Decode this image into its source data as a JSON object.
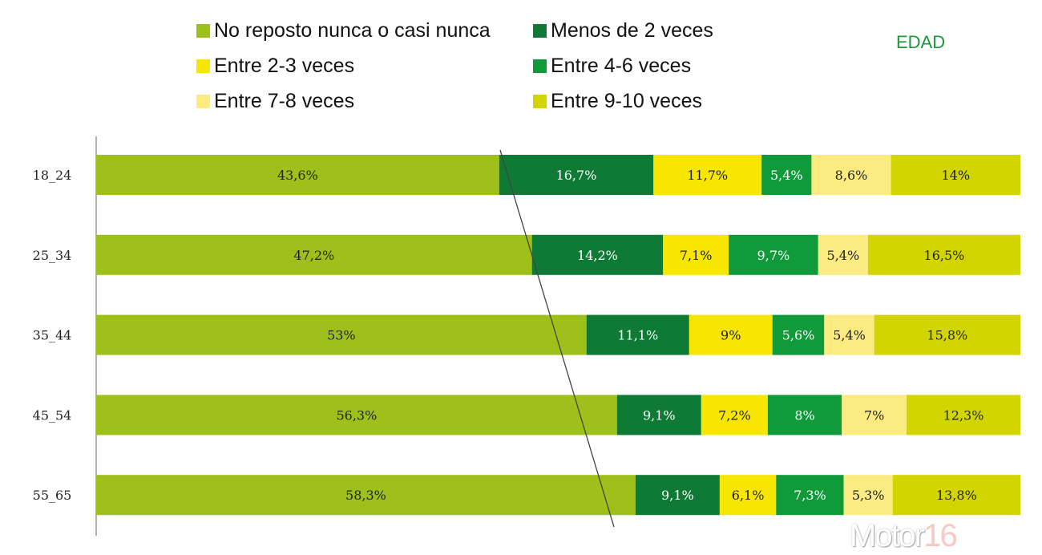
{
  "chart_data": {
    "type": "bar",
    "orientation": "horizontal",
    "stacked": true,
    "title": "EDAD",
    "categories": [
      "18_24",
      "25_34",
      "35_44",
      "45_54",
      "55_65"
    ],
    "series": [
      {
        "name": "No reposto nunca o casi nunca",
        "color": "#9dc11a",
        "text_color": "#222222",
        "values": [
          43.6,
          47.2,
          53,
          56.3,
          58.3
        ],
        "labels": [
          "43,6%",
          "47,2%",
          "53%",
          "56,3%",
          "58,3%"
        ]
      },
      {
        "name": "Menos de 2 veces",
        "color": "#0f7a35",
        "text_color": "#ffffff",
        "values": [
          16.7,
          14.2,
          11.1,
          9.1,
          9.1
        ],
        "labels": [
          "16,7%",
          "14,2%",
          "11,1%",
          "9,1%",
          "9,1%"
        ]
      },
      {
        "name": "Entre 2-3 veces",
        "color": "#f6e600",
        "text_color": "#222222",
        "values": [
          11.7,
          7.1,
          9,
          7.2,
          6.1
        ],
        "labels": [
          "11,7%",
          "7,1%",
          "9%",
          "7,2%",
          "6,1%"
        ]
      },
      {
        "name": "Entre 4-6 veces",
        "color": "#109a3a",
        "text_color": "#ffffff",
        "values": [
          5.4,
          9.7,
          5.6,
          8,
          7.3
        ],
        "labels": [
          "5,4%",
          "9,7%",
          "5,6%",
          "8%",
          "7,3%"
        ]
      },
      {
        "name": "Entre 7-8 veces",
        "color": "#fbeb80",
        "text_color": "#222222",
        "values": [
          8.6,
          5.4,
          5.4,
          7,
          5.3
        ],
        "labels": [
          "8,6%",
          "5,4%",
          "5,4%",
          "7%",
          "5,3%"
        ]
      },
      {
        "name": "Entre 9-10 veces",
        "color": "#d2d500",
        "text_color": "#222222",
        "values": [
          14,
          16.5,
          15.8,
          12.3,
          13.8
        ],
        "labels": [
          "14%",
          "16,5%",
          "15,8%",
          "12,3%",
          "13,8%"
        ]
      }
    ],
    "xlim": [
      0,
      100
    ],
    "legend": "top",
    "grid": false
  },
  "watermark": {
    "text_a": "Motor",
    "text_b": "16"
  }
}
